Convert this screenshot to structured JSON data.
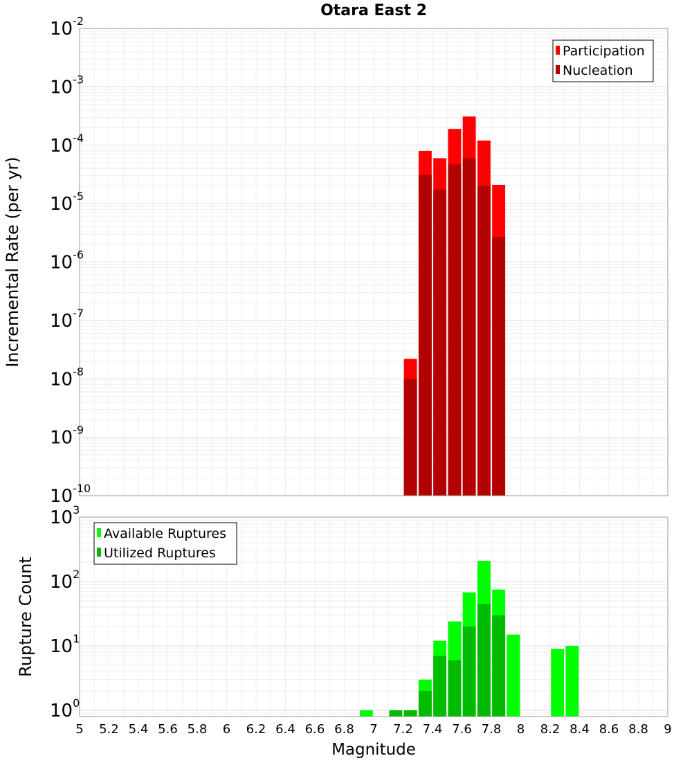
{
  "chart_data": [
    {
      "type": "bar",
      "title": "Otara East 2",
      "xlabel": "",
      "ylabel": "Incremental Rate (per yr)",
      "yscale": "log",
      "ylim": [
        1e-10,
        0.01
      ],
      "xlim": [
        5,
        9
      ],
      "bin_width": 0.1,
      "grid": true,
      "legend_position": "top-right",
      "x": [
        7.25,
        7.35,
        7.45,
        7.55,
        7.65,
        7.75,
        7.85
      ],
      "series": [
        {
          "name": "Participation",
          "color": "#ff0000",
          "values": [
            2.2e-08,
            8e-05,
            6e-05,
            0.00019,
            0.00031,
            0.00012,
            2.1e-05
          ]
        },
        {
          "name": "Nucleation",
          "color": "#b30000",
          "values": [
            1e-08,
            3.1e-05,
            1.75e-05,
            4.7e-05,
            6e-05,
            2e-05,
            2.7e-06
          ]
        }
      ],
      "ytick_bases": [
        "10",
        "10",
        "10",
        "10",
        "10",
        "10",
        "10",
        "10",
        "10"
      ],
      "ytick_exponents": [
        "-2",
        "-3",
        "-4",
        "-5",
        "-6",
        "-7",
        "-8",
        "-9",
        "-10"
      ]
    },
    {
      "type": "bar",
      "title": "",
      "xlabel": "Magnitude",
      "ylabel": "Rupture Count",
      "yscale": "log",
      "ylim": [
        0.8,
        1000
      ],
      "xlim": [
        5,
        9
      ],
      "bin_width": 0.1,
      "grid": true,
      "legend_position": "top-left",
      "x": [
        6.95,
        7.15,
        7.25,
        7.35,
        7.45,
        7.55,
        7.65,
        7.75,
        7.85,
        7.95,
        8.25,
        8.35
      ],
      "series": [
        {
          "name": "Available Ruptures",
          "color": "#00ff00",
          "values": [
            1,
            1,
            1,
            3,
            12,
            24,
            68,
            210,
            75,
            15,
            9,
            10
          ]
        },
        {
          "name": "Utilized Ruptures",
          "color": "#00bb00",
          "values": [
            0,
            1,
            1,
            2,
            7,
            6,
            20,
            45,
            30,
            0,
            0,
            0
          ]
        }
      ],
      "ytick_bases": [
        "10",
        "10",
        "10",
        "10"
      ],
      "ytick_exponents": [
        "3",
        "2",
        "1",
        "0"
      ],
      "xtick_labels": [
        "5",
        "5.2",
        "5.4",
        "5.6",
        "5.8",
        "6",
        "6.2",
        "6.4",
        "6.6",
        "6.8",
        "7",
        "7.2",
        "7.4",
        "7.6",
        "7.8",
        "8",
        "8.2",
        "8.4",
        "8.6",
        "8.8",
        "9"
      ]
    }
  ]
}
